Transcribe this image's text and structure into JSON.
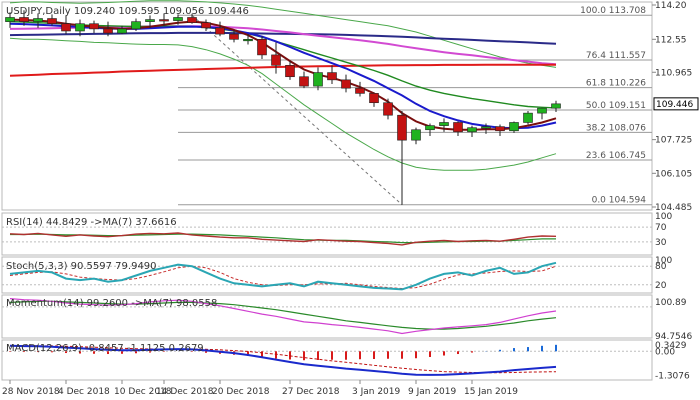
{
  "colors": {
    "background": "#ffffff",
    "grid": "#d8d8d8",
    "text": "#333333",
    "bull_candle": "#1fb21f",
    "bear_candle": "#c31212",
    "ma_fast": "#7a0e0e",
    "ma_mid": "#1a1acc",
    "ma_slow": "#208a20",
    "ma_200": "#e01a1a",
    "ma_long": "#d24ad2",
    "ma_long2": "#2a2a88",
    "bollinger": "#4aa84a",
    "rsi_line": "#b03030",
    "rsi_ma": "#2f8f2f",
    "stoch_k": "#2aa6b4",
    "stoch_d": "#c83030",
    "mom_line": "#d040d0",
    "mom_ma": "#2a8a2a",
    "macd_line": "#1a2acc",
    "macd_hist_neg": "#d81a1a",
    "macd_hist_pos": "#1a6ad8",
    "price_tag_bg": "#ffffff",
    "price_tag_border": "#000000"
  },
  "price_panel": {
    "title": "USDJPY,Daily  109.240 109.595 109.056 109.446",
    "y_ticks": [
      "114.20",
      "112.55",
      "110.965",
      "109.446",
      "107.725",
      "106.105",
      "104.485"
    ],
    "current_price": "109.446",
    "fib_levels": [
      {
        "label": "100.0 113.708",
        "value": 113.708
      },
      {
        "label": "76.4 111.557",
        "value": 111.557
      },
      {
        "label": "61.8 110.226",
        "value": 110.226
      },
      {
        "label": "50.0 109.151",
        "value": 109.151
      },
      {
        "label": "38.2 108.076",
        "value": 108.076
      },
      {
        "label": "23.6 106.745",
        "value": 106.745
      },
      {
        "label": "0.0 104.594",
        "value": 104.594
      }
    ]
  },
  "rsi_panel": {
    "title": "RSI(14) 44.8429  ->MA(7) 37.6616",
    "y_ticks": [
      "100",
      "70",
      "30"
    ]
  },
  "stoch_panel": {
    "title": "Stoch(5,3,3) 90.5597 79.9490",
    "y_ticks": [
      "100",
      "80",
      "20"
    ]
  },
  "momentum_panel": {
    "title": "Momentum(14) 99.2600  ->MA(7) 98.0558",
    "y_ticks": [
      "100.89",
      "94.7546"
    ]
  },
  "macd_panel": {
    "title": "MACD(12,26,9) -0.8457 -1.1125 0.2679",
    "y_ticks": [
      "0.3429",
      "0.00",
      "-1.3076"
    ]
  },
  "x_axis": {
    "labels": [
      "28 Nov 2018",
      "4 Dec 2018",
      "10 Dec 2018",
      "14 Dec 2018",
      "20 Dec 2018",
      "27 Dec 2018",
      "3 Jan 2019",
      "9 Jan 2019",
      "15 Jan 2019"
    ]
  },
  "chart_data": {
    "type": "line",
    "title": "USDJPY,Daily",
    "ylim": [
      104.485,
      114.2
    ],
    "candles": [
      {
        "o": 113.4,
        "h": 113.85,
        "l": 113.1,
        "c": 113.6
      },
      {
        "o": 113.6,
        "h": 113.95,
        "l": 113.2,
        "c": 113.4
      },
      {
        "o": 113.4,
        "h": 113.8,
        "l": 113.1,
        "c": 113.55
      },
      {
        "o": 113.55,
        "h": 113.75,
        "l": 113.2,
        "c": 113.3
      },
      {
        "o": 113.3,
        "h": 113.7,
        "l": 112.8,
        "c": 112.95
      },
      {
        "o": 112.95,
        "h": 113.5,
        "l": 112.7,
        "c": 113.3
      },
      {
        "o": 113.3,
        "h": 113.45,
        "l": 112.85,
        "c": 113.05
      },
      {
        "o": 113.05,
        "h": 113.4,
        "l": 112.7,
        "c": 112.85
      },
      {
        "o": 112.85,
        "h": 113.2,
        "l": 112.8,
        "c": 113.05
      },
      {
        "o": 113.05,
        "h": 113.55,
        "l": 112.95,
        "c": 113.4
      },
      {
        "o": 113.4,
        "h": 113.7,
        "l": 113.1,
        "c": 113.5
      },
      {
        "o": 113.5,
        "h": 113.8,
        "l": 113.2,
        "c": 113.45
      },
      {
        "o": 113.45,
        "h": 113.75,
        "l": 113.25,
        "c": 113.6
      },
      {
        "o": 113.6,
        "h": 113.78,
        "l": 113.3,
        "c": 113.35
      },
      {
        "o": 113.35,
        "h": 113.5,
        "l": 112.95,
        "c": 113.1
      },
      {
        "o": 113.1,
        "h": 113.4,
        "l": 112.7,
        "c": 112.8
      },
      {
        "o": 112.8,
        "h": 113.0,
        "l": 112.4,
        "c": 112.55
      },
      {
        "o": 112.55,
        "h": 112.8,
        "l": 112.3,
        "c": 112.55
      },
      {
        "o": 112.55,
        "h": 112.7,
        "l": 111.6,
        "c": 111.8
      },
      {
        "o": 111.8,
        "h": 112.4,
        "l": 110.9,
        "c": 111.3
      },
      {
        "o": 111.3,
        "h": 111.5,
        "l": 110.6,
        "c": 110.75
      },
      {
        "o": 110.75,
        "h": 111.0,
        "l": 110.2,
        "c": 110.3
      },
      {
        "o": 110.3,
        "h": 111.2,
        "l": 110.1,
        "c": 110.95
      },
      {
        "o": 110.95,
        "h": 111.3,
        "l": 110.4,
        "c": 110.6
      },
      {
        "o": 110.6,
        "h": 110.85,
        "l": 110.0,
        "c": 110.2
      },
      {
        "o": 110.2,
        "h": 110.5,
        "l": 109.8,
        "c": 109.95
      },
      {
        "o": 109.95,
        "h": 110.0,
        "l": 109.3,
        "c": 109.5
      },
      {
        "o": 109.5,
        "h": 109.7,
        "l": 108.7,
        "c": 108.9
      },
      {
        "o": 108.9,
        "h": 109.1,
        "l": 104.594,
        "c": 107.7
      },
      {
        "o": 107.7,
        "h": 108.3,
        "l": 107.5,
        "c": 108.2
      },
      {
        "o": 108.2,
        "h": 108.5,
        "l": 107.9,
        "c": 108.4
      },
      {
        "o": 108.4,
        "h": 108.75,
        "l": 108.1,
        "c": 108.55
      },
      {
        "o": 108.55,
        "h": 108.6,
        "l": 107.9,
        "c": 108.1
      },
      {
        "o": 108.1,
        "h": 108.4,
        "l": 107.85,
        "c": 108.3
      },
      {
        "o": 108.3,
        "h": 108.5,
        "l": 108.0,
        "c": 108.35
      },
      {
        "o": 108.35,
        "h": 108.45,
        "l": 107.9,
        "c": 108.15
      },
      {
        "o": 108.15,
        "h": 108.6,
        "l": 108.05,
        "c": 108.55
      },
      {
        "o": 108.55,
        "h": 109.1,
        "l": 108.45,
        "c": 109.0
      },
      {
        "o": 109.0,
        "h": 109.25,
        "l": 108.7,
        "c": 109.24
      },
      {
        "o": 109.24,
        "h": 109.595,
        "l": 109.056,
        "c": 109.446
      }
    ],
    "series": [
      {
        "name": "ma_fast",
        "values": [
          113.5,
          113.48,
          113.45,
          113.4,
          113.3,
          113.22,
          113.15,
          113.1,
          113.05,
          113.08,
          113.15,
          113.25,
          113.35,
          113.4,
          113.35,
          113.2,
          113.0,
          112.75,
          112.4,
          111.95,
          111.5,
          111.1,
          110.85,
          110.7,
          110.5,
          110.25,
          109.95,
          109.55,
          109.0,
          108.6,
          108.35,
          108.25,
          108.2,
          108.2,
          108.22,
          108.22,
          108.28,
          108.4,
          108.55,
          108.75
        ]
      },
      {
        "name": "ma_mid",
        "values": [
          113.3,
          113.28,
          113.25,
          113.22,
          113.18,
          113.14,
          113.1,
          113.07,
          113.05,
          113.05,
          113.08,
          113.12,
          113.15,
          113.16,
          113.14,
          113.08,
          112.98,
          112.85,
          112.68,
          112.45,
          112.18,
          111.9,
          111.65,
          111.4,
          111.15,
          110.85,
          110.55,
          110.2,
          109.85,
          109.45,
          109.1,
          108.85,
          108.65,
          108.48,
          108.38,
          108.3,
          108.28,
          108.3,
          108.4,
          108.55
        ]
      },
      {
        "name": "ma_slow",
        "values": [
          113.4,
          113.38,
          113.35,
          113.32,
          113.28,
          113.25,
          113.22,
          113.2,
          113.18,
          113.17,
          113.17,
          113.18,
          113.18,
          113.17,
          113.12,
          113.05,
          112.95,
          112.82,
          112.65,
          112.45,
          112.25,
          112.05,
          111.85,
          111.65,
          111.45,
          111.25,
          111.05,
          110.82,
          110.55,
          110.3,
          110.1,
          109.95,
          109.82,
          109.7,
          109.6,
          109.5,
          109.4,
          109.32,
          109.28,
          109.25
        ]
      },
      {
        "name": "ma_200",
        "values": [
          110.8,
          110.82,
          110.85,
          110.88,
          110.9,
          110.92,
          110.95,
          110.97,
          111.0,
          111.02,
          111.04,
          111.06,
          111.08,
          111.1,
          111.12,
          111.14,
          111.16,
          111.18,
          111.2,
          111.22,
          111.23,
          111.24,
          111.25,
          111.26,
          111.27,
          111.28,
          111.29,
          111.3,
          111.3,
          111.31,
          111.31,
          111.32,
          111.32,
          111.32,
          111.33,
          111.33,
          111.33,
          111.33,
          111.33,
          111.33
        ]
      },
      {
        "name": "ma_long",
        "values": [
          113.05,
          113.06,
          113.07,
          113.08,
          113.1,
          113.11,
          113.12,
          113.14,
          113.15,
          113.16,
          113.17,
          113.18,
          113.18,
          113.18,
          113.17,
          113.15,
          113.12,
          113.08,
          113.02,
          112.95,
          112.88,
          112.8,
          112.72,
          112.65,
          112.58,
          112.5,
          112.42,
          112.33,
          112.22,
          112.12,
          112.02,
          111.93,
          111.85,
          111.78,
          111.7,
          111.62,
          111.55,
          111.48,
          111.4,
          111.35
        ]
      },
      {
        "name": "ma_long2",
        "values": [
          112.75,
          112.76,
          112.77,
          112.78,
          112.79,
          112.8,
          112.81,
          112.82,
          112.83,
          112.84,
          112.85,
          112.85,
          112.86,
          112.86,
          112.86,
          112.86,
          112.85,
          112.84,
          112.83,
          112.82,
          112.81,
          112.8,
          112.79,
          112.78,
          112.76,
          112.74,
          112.72,
          112.7,
          112.67,
          112.64,
          112.61,
          112.58,
          112.55,
          112.52,
          112.49,
          112.46,
          112.43,
          112.4,
          112.37,
          112.34
        ]
      },
      {
        "name": "bb_upper",
        "values": [
          114.3,
          114.35,
          114.35,
          114.32,
          114.3,
          114.28,
          114.3,
          114.32,
          114.35,
          114.38,
          114.4,
          114.4,
          114.4,
          114.38,
          114.35,
          114.3,
          114.25,
          114.18,
          114.1,
          114.0,
          113.9,
          113.8,
          113.7,
          113.6,
          113.5,
          113.4,
          113.3,
          113.2,
          113.05,
          112.9,
          112.7,
          112.5,
          112.3,
          112.1,
          111.9,
          111.7,
          111.55,
          111.4,
          111.3,
          111.2
        ]
      },
      {
        "name": "bb_lower",
        "values": [
          112.6,
          112.55,
          112.55,
          112.52,
          112.48,
          112.45,
          112.4,
          112.38,
          112.35,
          112.32,
          112.3,
          112.3,
          112.28,
          112.2,
          112.05,
          111.85,
          111.6,
          111.3,
          110.9,
          110.4,
          109.9,
          109.4,
          108.95,
          108.5,
          108.05,
          107.65,
          107.25,
          106.9,
          106.6,
          106.4,
          106.3,
          106.25,
          106.25,
          106.25,
          106.3,
          106.4,
          106.5,
          106.65,
          106.85,
          107.05
        ]
      },
      {
        "name": "rsi",
        "values": [
          52,
          50,
          53,
          49,
          45,
          49,
          46,
          44,
          47,
          51,
          53,
          52,
          54,
          49,
          46,
          43,
          41,
          41,
          37,
          35,
          33,
          31,
          36,
          34,
          32,
          31,
          28,
          26,
          22,
          29,
          32,
          34,
          31,
          33,
          34,
          32,
          37,
          43,
          46,
          45
        ]
      },
      {
        "name": "rsi_ma",
        "values": [
          50,
          50,
          51,
          50,
          49,
          49,
          48,
          47,
          47,
          48,
          49,
          50,
          51,
          51,
          50,
          49,
          47,
          45,
          43,
          41,
          38,
          36,
          35,
          34,
          34,
          33,
          31,
          30,
          28,
          28,
          29,
          30,
          31,
          31,
          32,
          32,
          34,
          36,
          38,
          38
        ]
      },
      {
        "name": "stoch_k",
        "values": [
          55,
          60,
          65,
          60,
          40,
          35,
          40,
          30,
          35,
          50,
          65,
          75,
          85,
          80,
          60,
          40,
          25,
          20,
          15,
          20,
          25,
          15,
          30,
          25,
          20,
          15,
          10,
          8,
          5,
          20,
          40,
          55,
          60,
          50,
          65,
          75,
          55,
          60,
          80,
          91
        ]
      },
      {
        "name": "stoch_d",
        "values": [
          50,
          55,
          60,
          62,
          55,
          45,
          40,
          37,
          35,
          40,
          50,
          62,
          75,
          80,
          75,
          60,
          40,
          28,
          20,
          18,
          20,
          20,
          23,
          23,
          25,
          20,
          15,
          11,
          8,
          11,
          22,
          38,
          52,
          55,
          58,
          63,
          65,
          63,
          65,
          80
        ]
      },
      {
        "name": "momentum",
        "values": [
          101.5,
          101.3,
          101.2,
          101.0,
          100.7,
          100.5,
          100.4,
          100.3,
          100.4,
          100.6,
          100.9,
          101.1,
          101.2,
          101.0,
          100.6,
          100.2,
          99.7,
          99.2,
          98.7,
          98.3,
          97.8,
          97.3,
          97.1,
          96.8,
          96.6,
          96.3,
          96.0,
          95.7,
          95.2,
          95.6,
          95.9,
          96.2,
          96.4,
          96.6,
          96.8,
          97.2,
          97.8,
          98.4,
          98.9,
          99.26
        ]
      },
      {
        "name": "momentum_ma",
        "values": [
          100.8,
          100.9,
          101.0,
          101.0,
          100.9,
          100.8,
          100.7,
          100.6,
          100.5,
          100.5,
          100.6,
          100.7,
          100.8,
          100.8,
          100.7,
          100.6,
          100.4,
          100.1,
          99.8,
          99.5,
          99.1,
          98.7,
          98.3,
          97.9,
          97.5,
          97.2,
          96.9,
          96.6,
          96.3,
          96.1,
          96.0,
          96.0,
          96.1,
          96.3,
          96.5,
          96.8,
          97.1,
          97.5,
          97.8,
          98.06
        ]
      },
      {
        "name": "macd_line",
        "values": [
          0.3,
          0.28,
          0.27,
          0.25,
          0.2,
          0.16,
          0.12,
          0.08,
          0.06,
          0.06,
          0.08,
          0.1,
          0.12,
          0.1,
          0.05,
          -0.02,
          -0.1,
          -0.2,
          -0.32,
          -0.45,
          -0.58,
          -0.7,
          -0.78,
          -0.86,
          -0.94,
          -1.0,
          -1.07,
          -1.14,
          -1.22,
          -1.27,
          -1.28,
          -1.27,
          -1.24,
          -1.2,
          -1.15,
          -1.1,
          -1.02,
          -0.96,
          -0.9,
          -0.85
        ]
      },
      {
        "name": "macd_signal",
        "values": [
          0.32,
          0.31,
          0.3,
          0.29,
          0.27,
          0.25,
          0.22,
          0.19,
          0.16,
          0.14,
          0.13,
          0.12,
          0.12,
          0.12,
          0.11,
          0.08,
          0.04,
          -0.01,
          -0.08,
          -0.16,
          -0.25,
          -0.34,
          -0.43,
          -0.52,
          -0.6,
          -0.68,
          -0.76,
          -0.84,
          -0.92,
          -0.99,
          -1.05,
          -1.1,
          -1.13,
          -1.15,
          -1.16,
          -1.16,
          -1.15,
          -1.13,
          -1.12,
          -1.11
        ]
      }
    ]
  }
}
